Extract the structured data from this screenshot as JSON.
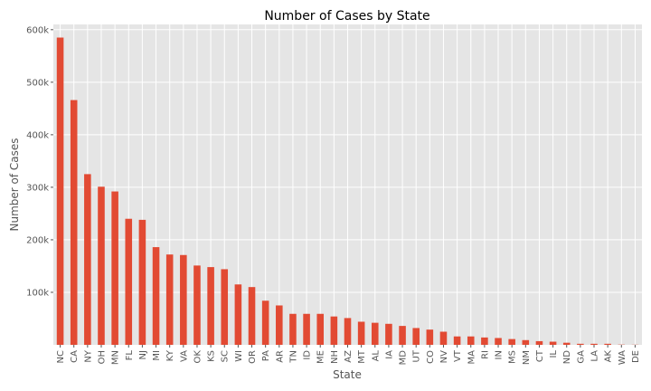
{
  "chart_data": {
    "type": "bar",
    "title": "Number of Cases by State",
    "xlabel": "State",
    "ylabel": "Number of Cases",
    "ylim": [
      0,
      610000
    ],
    "y_ticks": [
      100000,
      200000,
      300000,
      400000,
      500000,
      600000
    ],
    "y_tick_labels": [
      "100k",
      "200k",
      "300k",
      "400k",
      "500k",
      "600k"
    ],
    "grid": true,
    "bar_color": "#e24a33",
    "background_color": "#e5e5e5",
    "grid_color": "#ffffff",
    "categories": [
      "NC",
      "CA",
      "NY",
      "OH",
      "MN",
      "FL",
      "NJ",
      "MI",
      "KY",
      "VA",
      "OK",
      "KS",
      "SC",
      "WI",
      "OR",
      "PA",
      "AR",
      "TN",
      "ID",
      "ME",
      "NH",
      "AZ",
      "MT",
      "AL",
      "IA",
      "MD",
      "UT",
      "CO",
      "NV",
      "VT",
      "MA",
      "RI",
      "IN",
      "MS",
      "NM",
      "CT",
      "IL",
      "ND",
      "GA",
      "LA",
      "AK",
      "WA",
      "DE"
    ],
    "values": [
      585000,
      466000,
      325000,
      301000,
      292000,
      240000,
      238000,
      186000,
      172000,
      171000,
      151000,
      148000,
      144000,
      115000,
      110000,
      84000,
      75000,
      59000,
      59000,
      59000,
      54000,
      51000,
      44000,
      42000,
      40000,
      36000,
      32000,
      29000,
      25000,
      16000,
      16000,
      14000,
      13000,
      11000,
      9000,
      7000,
      6000,
      4000,
      2000,
      2000,
      2000,
      500,
      300
    ]
  }
}
